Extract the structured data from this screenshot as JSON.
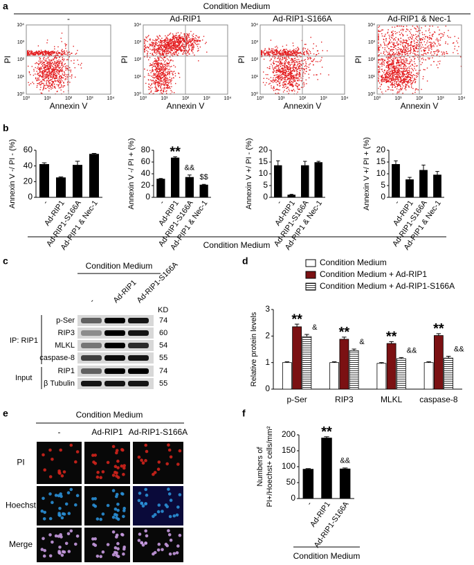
{
  "panel_labels": [
    "a",
    "b",
    "c",
    "d",
    "e",
    "f"
  ],
  "panel_a": {
    "header": "Condition Medium",
    "titles": [
      "-",
      "Ad-RIP1",
      "Ad-RIP1-S166A",
      "Ad-RIP1 & Nec-1"
    ],
    "y_label": "PI",
    "x_label": "Annexin V",
    "ticks": [
      "10⁰",
      "10¹",
      "10²",
      "10³",
      "10⁴"
    ]
  },
  "panel_b": {
    "footer": "Condition  Medium"
  },
  "panel_c": {
    "header": "Condition Medium",
    "lanes": [
      "-",
      "Ad-RIP1",
      "Ad-RIP1-S166A"
    ],
    "kd_header": "KD",
    "rows": [
      {
        "label": "p-Ser",
        "kd": "74"
      },
      {
        "label": "RIP3",
        "kd": "60"
      },
      {
        "label": "MLKL",
        "kd": "54"
      },
      {
        "label": "caspase-8",
        "kd": "55"
      },
      {
        "label": "RIP1",
        "kd": "74"
      },
      {
        "label": "β Tubulin",
        "kd": "55"
      }
    ],
    "groups": [
      "IP: RIP1",
      "Input"
    ]
  },
  "panel_e": {
    "header": "Condition Medium",
    "columns": [
      "-",
      "Ad-RIP1",
      "Ad-RIP1-S166A"
    ],
    "rows": [
      "PI",
      "Hoechst",
      "Merge"
    ]
  },
  "panel_f": {
    "footer": "Condition Medium"
  },
  "chart_data": [
    {
      "type": "bar",
      "ylabel": "Annexin V -/ PI - (%)",
      "categories": [
        "-",
        "Ad-RIP1",
        "Ad-RIP1-S166A",
        "Ad-RIP1 & Nec-1"
      ],
      "values": [
        42,
        25,
        41,
        55
      ],
      "errors": [
        2,
        1,
        5,
        1
      ],
      "color": "#000000",
      "ylim": [
        0,
        60
      ],
      "yticks": [
        0,
        20,
        40,
        60
      ]
    },
    {
      "type": "bar",
      "ylabel": "Annexin V -/ PI + (%)",
      "categories": [
        "-",
        "Ad-RIP1",
        "Ad-RIP1-S166A",
        "Ad-RIP1 & Nec-1"
      ],
      "values": [
        31,
        67,
        34,
        21
      ],
      "errors": [
        1,
        2,
        4,
        1
      ],
      "annotations": [
        null,
        "**",
        "&&",
        "$$"
      ],
      "color": "#000000",
      "ylim": [
        0,
        80
      ],
      "yticks": [
        0,
        20,
        40,
        60,
        80
      ]
    },
    {
      "type": "bar",
      "ylabel": "Annexin V +/ PI - (%)",
      "categories": [
        "-",
        "Ad-RIP1",
        "Ad-RIP1-S166A",
        "Ad-RIP1 & Nec-1"
      ],
      "values": [
        13.5,
        1,
        13.5,
        14.8
      ],
      "errors": [
        2,
        0.3,
        1.8,
        0.5
      ],
      "color": "#000000",
      "ylim": [
        0,
        20
      ],
      "yticks": [
        0,
        5,
        10,
        15,
        20
      ]
    },
    {
      "type": "bar",
      "ylabel": "Annexin V +/ PI + (%)",
      "categories": [
        "-",
        "Ad-RIP1",
        "Ad-RIP1-S166A",
        "Ad-RIP1 & Nec-1"
      ],
      "values": [
        14,
        7.5,
        11.5,
        9.5
      ],
      "errors": [
        1.5,
        1,
        2.2,
        1.5
      ],
      "color": "#000000",
      "ylim": [
        0,
        20
      ],
      "yticks": [
        0,
        5,
        10,
        15,
        20
      ]
    },
    {
      "type": "bar",
      "ylabel": "Relative protein levels",
      "categories": [
        "p-Ser",
        "RIP3",
        "MLKL",
        "caspase-8"
      ],
      "ylim": [
        0,
        3
      ],
      "yticks": [
        0,
        1,
        2,
        3
      ],
      "series": [
        {
          "name": "Condition Medium",
          "color": "#ffffff",
          "values": [
            1,
            1,
            0.97,
            1
          ],
          "errors": [
            0.03,
            0.03,
            0.03,
            0.03
          ]
        },
        {
          "name": "Condition Medium + Ad-RIP1",
          "color": "#7b1113",
          "values": [
            2.35,
            1.88,
            1.72,
            2.02
          ],
          "errors": [
            0.1,
            0.08,
            0.07,
            0.07
          ],
          "annotations": [
            "**",
            "**",
            "**",
            "**"
          ]
        },
        {
          "name": "Condition Medium + Ad-RIP1-S166A",
          "color": "#ffffff",
          "hatch": "horizontal",
          "values": [
            1.98,
            1.45,
            1.15,
            1.17
          ],
          "errors": [
            0.08,
            0.06,
            0.04,
            0.07
          ],
          "annotations": [
            "&",
            "&",
            "&&",
            "&&"
          ]
        }
      ]
    },
    {
      "type": "bar",
      "ylabel": [
        "Numbers of",
        "PI+/Hoechst+ cells/mm²"
      ],
      "categories": [
        "-",
        "Ad-RIP1",
        "Ad-RIP1-S166A"
      ],
      "values": [
        92,
        190,
        93
      ],
      "errors": [
        2,
        4,
        3
      ],
      "annotations": [
        null,
        "**",
        "&&"
      ],
      "color": "#000000",
      "ylim": [
        0,
        200
      ],
      "yticks": [
        0,
        50,
        100,
        150,
        200
      ]
    }
  ]
}
